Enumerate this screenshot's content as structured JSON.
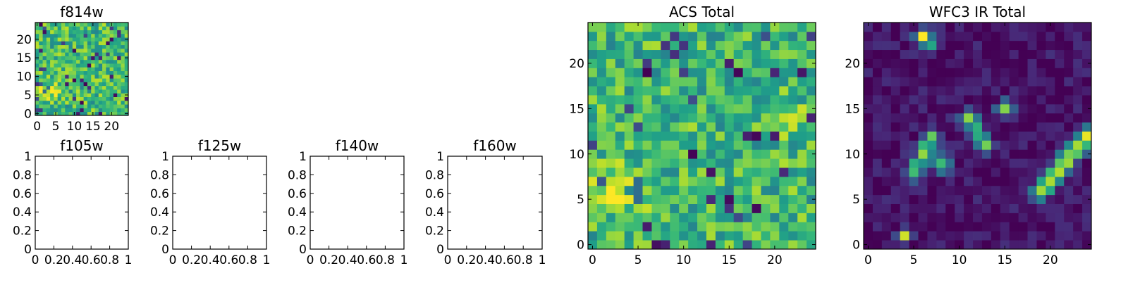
{
  "chart_data": [
    {
      "type": "heatmap",
      "title": "f814w",
      "grid_size": [
        25,
        25
      ],
      "xlim": [
        -0.5,
        24.5
      ],
      "ylim": [
        -0.5,
        24.5
      ],
      "x_ticks": [
        0,
        5,
        10,
        15,
        20
      ],
      "y_ticks": [
        0,
        5,
        10,
        15,
        20
      ],
      "origin": "lower",
      "colormap": "viridis",
      "seed": 11,
      "base": 0.68,
      "noise": 0.22,
      "low_fraction": 0.06,
      "blobs": [
        {
          "x": 2,
          "y": 6,
          "sx": 2.5,
          "sy": 1.5,
          "amp": 0.3
        }
      ],
      "segments": []
    },
    {
      "type": "empty",
      "title": "f105w",
      "xlim": [
        0.0,
        1.0
      ],
      "ylim": [
        0.0,
        1.0
      ],
      "x_ticks": [
        0.0,
        0.2,
        0.4,
        0.6,
        0.8,
        1.0
      ],
      "y_ticks": [
        0.0,
        0.2,
        0.4,
        0.6,
        0.8,
        1.0
      ]
    },
    {
      "type": "empty",
      "title": "f125w",
      "xlim": [
        0.0,
        1.0
      ],
      "ylim": [
        0.0,
        1.0
      ],
      "x_ticks": [
        0.0,
        0.2,
        0.4,
        0.6,
        0.8,
        1.0
      ],
      "y_ticks": [
        0.0,
        0.2,
        0.4,
        0.6,
        0.8,
        1.0
      ]
    },
    {
      "type": "empty",
      "title": "f140w",
      "xlim": [
        0.0,
        1.0
      ],
      "ylim": [
        0.0,
        1.0
      ],
      "x_ticks": [
        0.0,
        0.2,
        0.4,
        0.6,
        0.8,
        1.0
      ],
      "y_ticks": [
        0.0,
        0.2,
        0.4,
        0.6,
        0.8,
        1.0
      ]
    },
    {
      "type": "empty",
      "title": "f160w",
      "xlim": [
        0.0,
        1.0
      ],
      "ylim": [
        0.0,
        1.0
      ],
      "x_ticks": [
        0.0,
        0.2,
        0.4,
        0.6,
        0.8,
        1.0
      ],
      "y_ticks": [
        0.0,
        0.2,
        0.4,
        0.6,
        0.8,
        1.0
      ]
    },
    {
      "type": "heatmap",
      "title": "ACS Total",
      "grid_size": [
        25,
        25
      ],
      "xlim": [
        -0.5,
        24.5
      ],
      "ylim": [
        -0.5,
        24.5
      ],
      "x_ticks": [
        0,
        5,
        10,
        15,
        20
      ],
      "y_ticks": [
        0,
        5,
        10,
        15,
        20
      ],
      "origin": "lower",
      "colormap": "viridis",
      "seed": 29,
      "base": 0.66,
      "noise": 0.22,
      "low_fraction": 0.05,
      "blobs": [
        {
          "x": 2,
          "y": 6,
          "sx": 2.5,
          "sy": 1.8,
          "amp": 0.32
        },
        {
          "x": 21,
          "y": 14,
          "sx": 1.5,
          "sy": 1.5,
          "amp": 0.15
        }
      ],
      "segments": []
    },
    {
      "type": "heatmap",
      "title": "WFC3 IR Total",
      "grid_size": [
        25,
        25
      ],
      "xlim": [
        -0.5,
        24.5
      ],
      "ylim": [
        -0.5,
        24.5
      ],
      "x_ticks": [
        0,
        5,
        10,
        15,
        20
      ],
      "y_ticks": [
        0,
        5,
        10,
        15,
        20
      ],
      "origin": "lower",
      "colormap": "viridis",
      "seed": 47,
      "base": 0.05,
      "noise": 0.09,
      "low_fraction": 0.0,
      "blobs": [
        {
          "x": 6,
          "y": 23,
          "sx": 0.6,
          "sy": 0.6,
          "amp": 0.95
        },
        {
          "x": 7,
          "y": 22,
          "sx": 0.5,
          "sy": 0.5,
          "amp": 0.5
        },
        {
          "x": 15,
          "y": 15,
          "sx": 0.6,
          "sy": 0.6,
          "amp": 0.85
        },
        {
          "x": 4,
          "y": 1,
          "sx": 0.5,
          "sy": 0.5,
          "amp": 0.9
        },
        {
          "x": 8,
          "y": 9,
          "sx": 0.7,
          "sy": 0.7,
          "amp": 0.7
        }
      ],
      "segments": [
        {
          "x1": 19,
          "y1": 6,
          "x2": 24,
          "y2": 12,
          "w": 0.7,
          "amp": 0.85
        },
        {
          "x1": 5,
          "y1": 8,
          "x2": 7,
          "y2": 12,
          "w": 0.6,
          "amp": 0.7
        },
        {
          "x1": 11,
          "y1": 14,
          "x2": 13,
          "y2": 11,
          "w": 0.6,
          "amp": 0.7
        }
      ]
    }
  ]
}
